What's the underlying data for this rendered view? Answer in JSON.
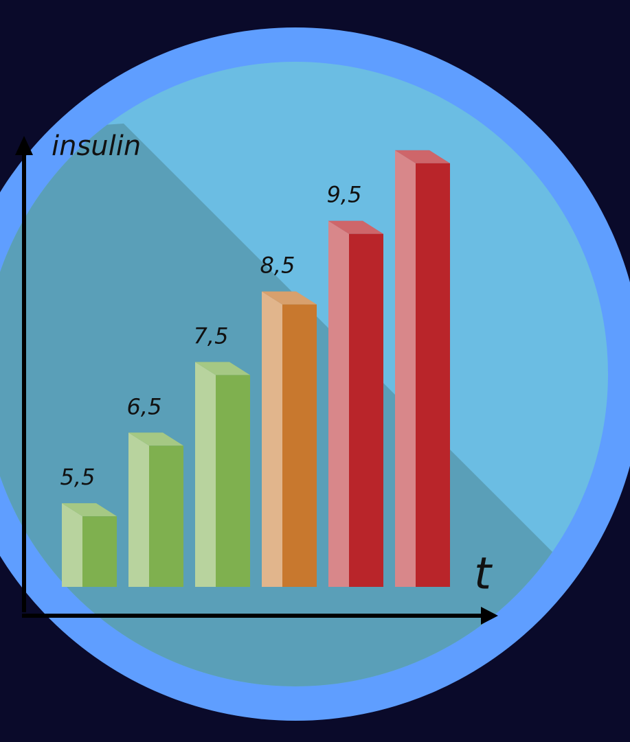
{
  "chart_data": {
    "type": "bar3d",
    "y_label": "insulin",
    "x_label": "t",
    "categories": [
      null,
      null,
      null,
      null,
      null,
      null
    ],
    "values": [
      5.5,
      6.5,
      7.5,
      8.5,
      9.5,
      10.5
    ],
    "value_labels": [
      "5,5",
      "6,5",
      "7,5",
      "8,5",
      "9,5",
      null
    ],
    "colors": [
      "#7fb04f",
      "#7fb04f",
      "#7fb04f",
      "#c8782e",
      "#b9252a",
      "#b9252a"
    ],
    "ylim": [
      4.5,
      10.8
    ]
  }
}
